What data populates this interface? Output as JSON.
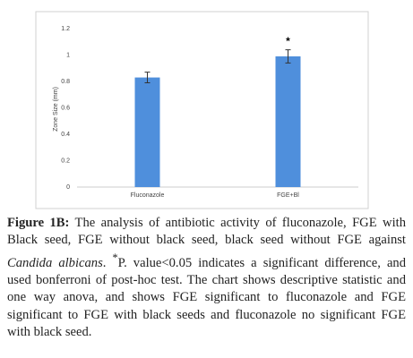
{
  "chart_data": {
    "type": "bar",
    "y_label": "Zone Size (mm)",
    "categories": [
      "Fluconazole",
      "FGE+Bl"
    ],
    "values": [
      0.83,
      0.99
    ],
    "errors": [
      0.04,
      0.05
    ],
    "color": "#4f8fdc",
    "ylim": [
      0,
      1.2
    ],
    "yticks": [
      0,
      0.2,
      0.4,
      0.6,
      0.8,
      1,
      1.2
    ],
    "grid": false,
    "annotations": [
      {
        "text": "*",
        "x": "FGE+Bl"
      }
    ]
  },
  "caption": {
    "label": "Figure 1B:",
    "text_before": "The analysis of antibiotic activity of fluconazole, FGE with Black seed, FGE without black seed, black seed without FGE against",
    "italic": "Candida albicans",
    "sup": "*",
    "text_after": "P. value<0.05 indicates a significant difference, and used bonferroni of post-hoc test. The chart shows descriptive statistic and one way anova, and shows FGE significant to fluconazole and FGE significant to FGE with black seeds and fluconazole no significant FGE with black seed."
  }
}
